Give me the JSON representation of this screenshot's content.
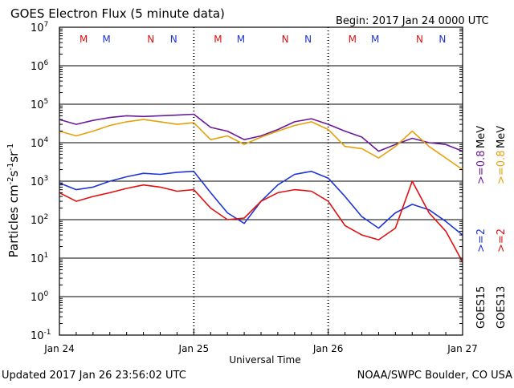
{
  "header": {
    "title": "GOES Electron Flux (5 minute data)",
    "begin": "Begin: 2017 Jan 24 0000 UTC"
  },
  "footer": {
    "updated": "Updated 2017 Jan 26 23:56:02 UTC",
    "credit": "NOAA/SWPC Boulder, CO USA"
  },
  "colors": {
    "goes15_2mev": "#1f35d6",
    "goes13_2mev": "#e01010",
    "goes15_08mev": "#6a1b9a",
    "goes13_08mev": "#e6a10a",
    "grid": "#000000",
    "threshold": "#000000"
  },
  "chart_data": {
    "type": "line",
    "x": [
      "2017-01-24T00:00",
      "2017-01-24T03:00",
      "2017-01-24T06:00",
      "2017-01-24T09:00",
      "2017-01-24T12:00",
      "2017-01-24T15:00",
      "2017-01-24T18:00",
      "2017-01-24T21:00",
      "2017-01-25T00:00",
      "2017-01-25T03:00",
      "2017-01-25T06:00",
      "2017-01-25T09:00",
      "2017-01-25T12:00",
      "2017-01-25T15:00",
      "2017-01-25T18:00",
      "2017-01-25T21:00",
      "2017-01-26T00:00",
      "2017-01-26T03:00",
      "2017-01-26T06:00",
      "2017-01-26T09:00",
      "2017-01-26T12:00",
      "2017-01-26T15:00",
      "2017-01-26T18:00",
      "2017-01-26T21:00",
      "2017-01-27T00:00"
    ],
    "xlabel": "Universal Time",
    "ylabel": "Particles cm^-2 s^-1 sr^-1",
    "yscale": "log",
    "ylim": [
      0.1,
      10000000
    ],
    "y_ticks": [
      {
        "base": "10",
        "exp": "7"
      },
      {
        "base": "10",
        "exp": "6"
      },
      {
        "base": "10",
        "exp": "5"
      },
      {
        "base": "10",
        "exp": "4"
      },
      {
        "base": "10",
        "exp": "3"
      },
      {
        "base": "10",
        "exp": "2"
      },
      {
        "base": "10",
        "exp": "1"
      },
      {
        "base": "10",
        "exp": "0"
      },
      {
        "base": "10",
        "exp": "-1"
      }
    ],
    "x_ticks": [
      "Jan 24",
      "Jan 25",
      "Jan 26",
      "Jan 27"
    ],
    "threshold": 1000,
    "grid": true,
    "series": [
      {
        "color": "#6a1b9a",
        "values": [
          40000,
          30000,
          38000,
          45000,
          50000,
          48000,
          50000,
          52000,
          55000,
          25000,
          20000,
          12000,
          15000,
          22000,
          35000,
          42000,
          30000,
          20000,
          14000,
          6000,
          9000,
          13000,
          10000,
          9000,
          6000
        ]
      },
      {
        "color": "#e6a10a",
        "values": [
          20000,
          15000,
          20000,
          28000,
          35000,
          40000,
          35000,
          30000,
          33000,
          12000,
          15000,
          9000,
          14000,
          20000,
          28000,
          35000,
          22000,
          8000,
          7000,
          4000,
          8000,
          20000,
          8000,
          4000,
          2000
        ]
      },
      {
        "color": "#1f35d6",
        "values": [
          900,
          600,
          700,
          1000,
          1300,
          1600,
          1500,
          1700,
          1800,
          500,
          150,
          80,
          300,
          800,
          1500,
          1800,
          1200,
          400,
          120,
          60,
          150,
          250,
          180,
          90,
          40
        ]
      },
      {
        "color": "#e01010",
        "values": [
          500,
          300,
          400,
          500,
          650,
          800,
          700,
          550,
          600,
          200,
          100,
          110,
          300,
          500,
          600,
          550,
          300,
          70,
          40,
          30,
          60,
          1000,
          150,
          50,
          8
        ]
      }
    ],
    "legend_labels": [
      {
        "goes": "GOES15",
        "threshold_mev": ">=2",
        "low_mev": ">=0.8",
        "unit": "MeV"
      },
      {
        "goes": "GOES13",
        "threshold_mev": ">=2",
        "low_mev": ">=0.8",
        "unit": "MeV"
      }
    ],
    "annotations": [
      {
        "label": "M",
        "x_frac_day": 0.18,
        "color": "#e01010"
      },
      {
        "label": "M",
        "x_frac_day": 0.35,
        "color": "#1f35d6"
      },
      {
        "label": "N",
        "x_frac_day": 0.68,
        "color": "#e01010"
      },
      {
        "label": "N",
        "x_frac_day": 0.85,
        "color": "#1f35d6"
      },
      {
        "label": "M",
        "x_frac_day": 1.18,
        "color": "#e01010"
      },
      {
        "label": "M",
        "x_frac_day": 1.35,
        "color": "#1f35d6"
      },
      {
        "label": "N",
        "x_frac_day": 1.68,
        "color": "#e01010"
      },
      {
        "label": "N",
        "x_frac_day": 1.85,
        "color": "#1f35d6"
      },
      {
        "label": "M",
        "x_frac_day": 2.18,
        "color": "#e01010"
      },
      {
        "label": "M",
        "x_frac_day": 2.35,
        "color": "#1f35d6"
      },
      {
        "label": "N",
        "x_frac_day": 2.68,
        "color": "#e01010"
      },
      {
        "label": "N",
        "x_frac_day": 2.85,
        "color": "#1f35d6"
      }
    ]
  }
}
